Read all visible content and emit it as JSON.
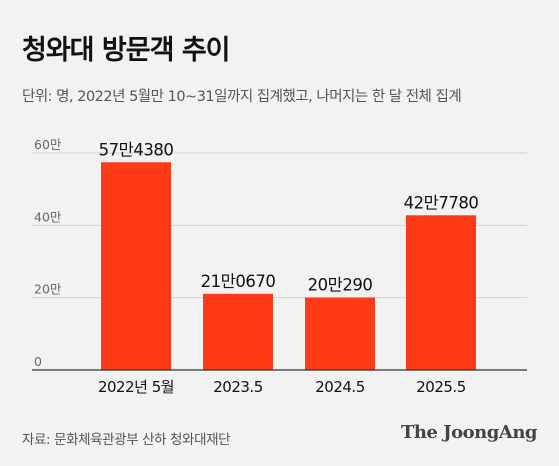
{
  "header": {
    "title": "청와대 방문객 추이",
    "subtitle": "단위: 명, 2022년 5월만 10~31일까지 집계했고, 나머지는 한 달 전체 집계"
  },
  "footer": {
    "source": "자료: 문화체육관광부 산하 청와대재단",
    "logo_text": "The JoongAng"
  },
  "colors": {
    "bar": "#fe3a17",
    "grid": "#d2d2d2",
    "axis": "#333333",
    "tick_text": "#666666"
  },
  "chart_data": {
    "type": "bar",
    "title": "청와대 방문객 추이",
    "categories": [
      "2022년 5월",
      "2023.5",
      "2024.5",
      "2025.5"
    ],
    "values": [
      574380,
      210670,
      200290,
      427780
    ],
    "data_labels": [
      "57만4380",
      "21만0670",
      "20만290",
      "42만7780"
    ],
    "ylim": [
      0,
      600000
    ],
    "yticks": [
      0,
      200000,
      400000,
      600000
    ],
    "ytick_labels": [
      "0",
      "20만",
      "40만",
      "60만"
    ],
    "grid": true,
    "legend": "none"
  }
}
